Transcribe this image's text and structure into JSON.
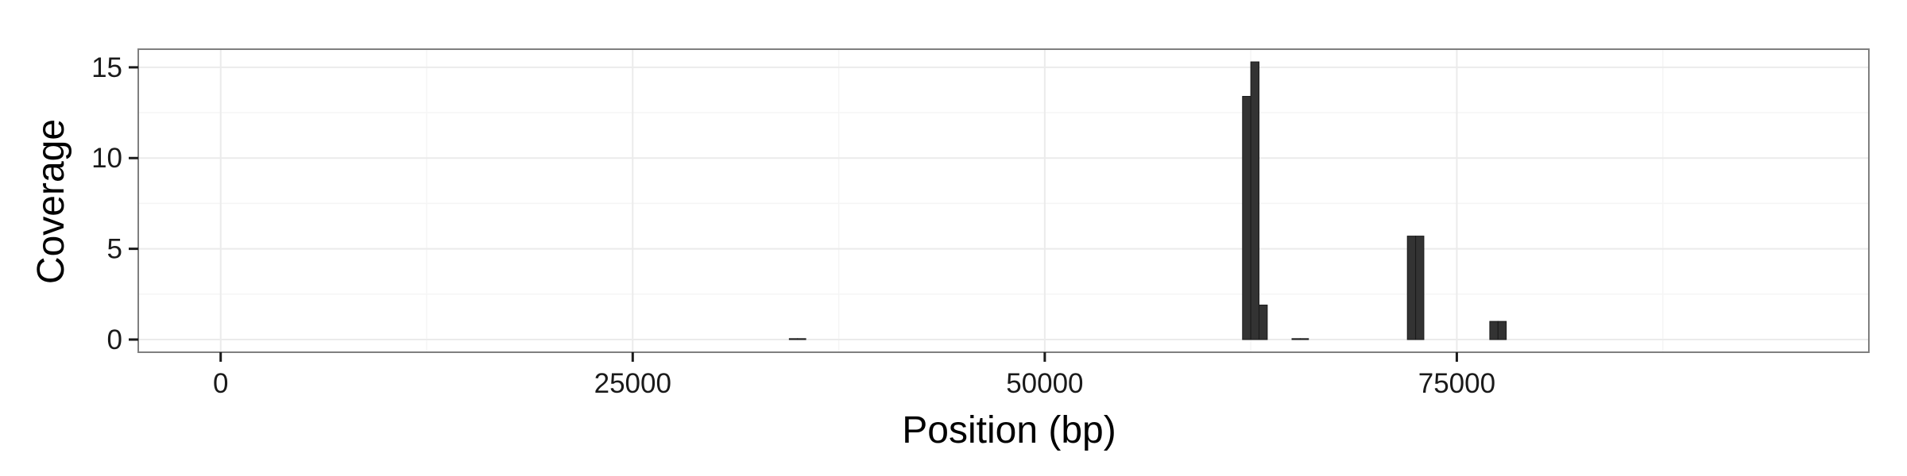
{
  "chart_data": {
    "type": "bar",
    "title": "",
    "xlabel": "Position (bp)",
    "ylabel": "Coverage",
    "xlim": [
      -5000,
      100000
    ],
    "ylim": [
      -0.7,
      16
    ],
    "x_ticks": [
      0,
      25000,
      50000,
      75000
    ],
    "x_tick_labels": [
      "0",
      "25000",
      "50000",
      "75000"
    ],
    "x_minor_ticks": [
      12500,
      37500,
      62500,
      87500
    ],
    "y_ticks": [
      0,
      5,
      10,
      15
    ],
    "y_tick_labels": [
      "0",
      "5",
      "10",
      "15"
    ],
    "y_minor_ticks": [
      2.5,
      7.5,
      12.5
    ],
    "grid": true,
    "legend": "none",
    "bin_width": 500,
    "bar_color": "#333333",
    "panel_border_color": "#7f7f7f",
    "grid_color": "#ebebeb",
    "series": [
      {
        "x": [
          34750,
          35250,
          62250,
          62750,
          63250,
          65250,
          65750,
          72250,
          72750,
          77250,
          77750
        ],
        "values": [
          0.05,
          0.05,
          13.4,
          15.3,
          1.9,
          0.05,
          0.05,
          5.7,
          5.7,
          1.0,
          1.0
        ]
      }
    ]
  }
}
